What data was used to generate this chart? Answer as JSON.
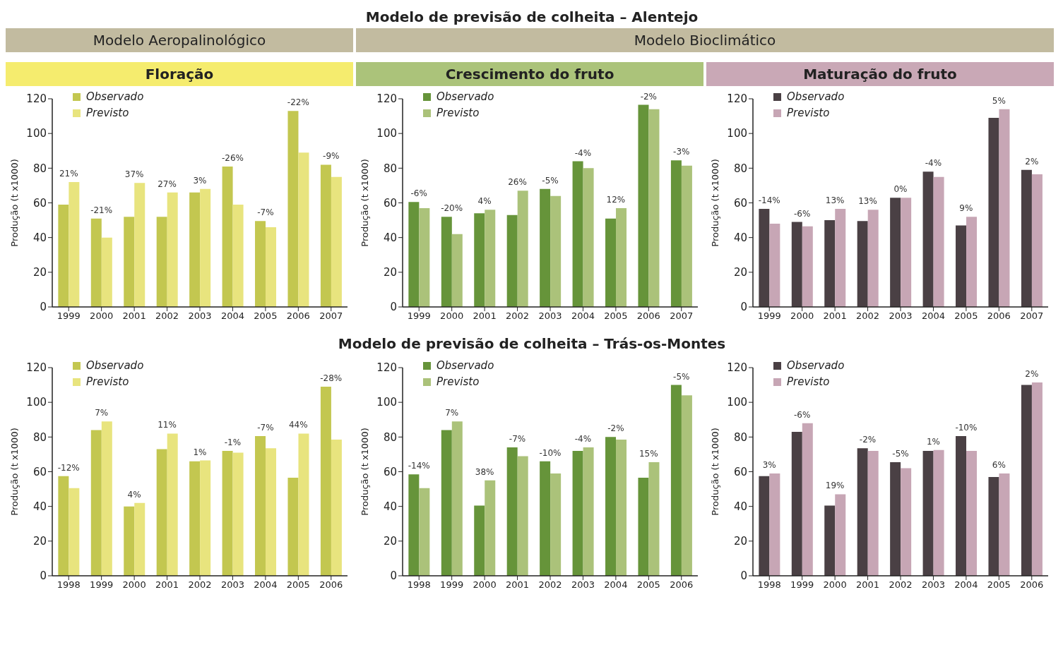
{
  "chart_data": [
    {
      "type": "bar",
      "title": "Floração",
      "ylabel": "Produção (t x1000)",
      "categories": [
        "1999",
        "2000",
        "2001",
        "2002",
        "2003",
        "2004",
        "2005",
        "2006",
        "2007"
      ],
      "ylim": [
        0,
        120
      ],
      "yticks": [
        0,
        20,
        40,
        60,
        80,
        100,
        120
      ],
      "legend": "top left",
      "series": [
        {
          "name": "Observado",
          "color": "#c3c750",
          "values": [
            59,
            51,
            52,
            52,
            66,
            81,
            49.5,
            113,
            82
          ]
        },
        {
          "name": "Previsto",
          "color": "#e8e47e",
          "values": [
            72,
            40,
            71.5,
            66,
            68,
            59,
            46,
            89,
            75
          ]
        }
      ],
      "annotations": [
        "Modelo de previsão de colheita – Alentejo",
        "Modelo Aeropalinológico",
        {
          "text": "21%",
          "x": "1999",
          "y": 72
        },
        {
          "text": "-21%",
          "x": "2000",
          "y": 51
        },
        {
          "text": "37%",
          "x": "2001",
          "y": 71.5
        },
        {
          "text": "27%",
          "x": "2002",
          "y": 66
        },
        {
          "text": "3%",
          "x": "2003",
          "y": 68
        },
        {
          "text": "-26%",
          "x": "2004",
          "y": 81
        },
        {
          "text": "-7%",
          "x": "2005",
          "y": 49.5
        },
        {
          "text": "-22%",
          "x": "2006",
          "y": 113
        },
        {
          "text": "-9%",
          "x": "2007",
          "y": 82
        }
      ]
    },
    {
      "type": "bar",
      "title": "Crescimento do fruto",
      "ylabel": "Produção (t x1000)",
      "categories": [
        "1999",
        "2000",
        "2001",
        "2002",
        "2003",
        "2004",
        "2005",
        "2006",
        "2007"
      ],
      "ylim": [
        0,
        120
      ],
      "yticks": [
        0,
        20,
        40,
        60,
        80,
        100,
        120
      ],
      "legend": "top left",
      "series": [
        {
          "name": "Observado",
          "color": "#66943a",
          "values": [
            60.5,
            52,
            54,
            53,
            68,
            84,
            51,
            116.5,
            84.5
          ]
        },
        {
          "name": "Previsto",
          "color": "#abc27a",
          "values": [
            57,
            42,
            56,
            67,
            64,
            80,
            57,
            114,
            81.5
          ]
        }
      ],
      "annotations": [
        "Modelo Bioclimático",
        {
          "text": "-6%",
          "x": "1999",
          "y": 60.5
        },
        {
          "text": "-20%",
          "x": "2000",
          "y": 52
        },
        {
          "text": "4%",
          "x": "2001",
          "y": 56
        },
        {
          "text": "26%",
          "x": "2002",
          "y": 67
        },
        {
          "text": "-5%",
          "x": "2003",
          "y": 68
        },
        {
          "text": "-4%",
          "x": "2004",
          "y": 84
        },
        {
          "text": "12%",
          "x": "2005",
          "y": 57
        },
        {
          "text": "-2%",
          "x": "2006",
          "y": 116.5
        },
        {
          "text": "-3%",
          "x": "2007",
          "y": 84.5
        }
      ]
    },
    {
      "type": "bar",
      "title": "Maturação do fruto",
      "ylabel": "Produção (t x1000)",
      "categories": [
        "1999",
        "2000",
        "2001",
        "2002",
        "2003",
        "2004",
        "2005",
        "2006",
        "2007"
      ],
      "ylim": [
        0,
        120
      ],
      "yticks": [
        0,
        20,
        40,
        60,
        80,
        100,
        120
      ],
      "legend": "top left",
      "series": [
        {
          "name": "Observado",
          "color": "#4a4044",
          "values": [
            56.5,
            49,
            50,
            49.5,
            63,
            78,
            47,
            109,
            79
          ]
        },
        {
          "name": "Previsto",
          "color": "#c7a6b5",
          "values": [
            48,
            46.5,
            56.5,
            56,
            63,
            75,
            52,
            114,
            76.5
          ]
        }
      ],
      "annotations": [
        {
          "text": "-14%",
          "x": "1999",
          "y": 56.5
        },
        {
          "text": "-6%",
          "x": "2000",
          "y": 49
        },
        {
          "text": "13%",
          "x": "2001",
          "y": 56.5
        },
        {
          "text": "13%",
          "x": "2002",
          "y": 56
        },
        {
          "text": "0%",
          "x": "2003",
          "y": 63
        },
        {
          "text": "-4%",
          "x": "2004",
          "y": 78
        },
        {
          "text": "9%",
          "x": "2005",
          "y": 52
        },
        {
          "text": "5%",
          "x": "2006",
          "y": 114
        },
        {
          "text": "2%",
          "x": "2007",
          "y": 79
        }
      ]
    },
    {
      "type": "bar",
      "ylabel": "Produção (t x1000)",
      "categories": [
        "1998",
        "1999",
        "2000",
        "2001",
        "2002",
        "2003",
        "2004",
        "2005",
        "2006"
      ],
      "ylim": [
        0,
        120
      ],
      "yticks": [
        0,
        20,
        40,
        60,
        80,
        100,
        120
      ],
      "legend": "top left",
      "series": [
        {
          "name": "Observado",
          "color": "#c3c750",
          "values": [
            57.5,
            84,
            40,
            73,
            66,
            72,
            80.5,
            56.5,
            109
          ]
        },
        {
          "name": "Previsto",
          "color": "#e8e47e",
          "values": [
            50.5,
            89,
            42,
            82,
            66.5,
            71,
            73.5,
            82,
            78.5
          ]
        }
      ],
      "annotations": [
        "Modelo de previsão de colheita – Trás-os-Montes",
        {
          "text": "-12%",
          "x": "1998",
          "y": 57.5
        },
        {
          "text": "7%",
          "x": "1999",
          "y": 89
        },
        {
          "text": "4%",
          "x": "2000",
          "y": 42
        },
        {
          "text": "11%",
          "x": "2001",
          "y": 82
        },
        {
          "text": "1%",
          "x": "2002",
          "y": 66.5
        },
        {
          "text": "-1%",
          "x": "2003",
          "y": 72
        },
        {
          "text": "-7%",
          "x": "2004",
          "y": 80.5
        },
        {
          "text": "44%",
          "x": "2005",
          "y": 82
        },
        {
          "text": "-28%",
          "x": "2006",
          "y": 109
        }
      ]
    },
    {
      "type": "bar",
      "ylabel": "Produção (t x1000)",
      "categories": [
        "1998",
        "1999",
        "2000",
        "2001",
        "2002",
        "2003",
        "2004",
        "2005",
        "2006"
      ],
      "ylim": [
        0,
        120
      ],
      "yticks": [
        0,
        20,
        40,
        60,
        80,
        100,
        120
      ],
      "legend": "top left",
      "series": [
        {
          "name": "Observado",
          "color": "#66943a",
          "values": [
            58.5,
            84,
            40.5,
            74,
            66,
            72,
            80,
            56.5,
            110
          ]
        },
        {
          "name": "Previsto",
          "color": "#abc27a",
          "values": [
            50.5,
            89,
            55,
            69,
            59,
            74,
            78.5,
            65.5,
            104
          ]
        }
      ],
      "annotations": [
        {
          "text": "-14%",
          "x": "1998",
          "y": 58.5
        },
        {
          "text": "7%",
          "x": "1999",
          "y": 89
        },
        {
          "text": "38%",
          "x": "2000",
          "y": 55
        },
        {
          "text": "-7%",
          "x": "2001",
          "y": 74
        },
        {
          "text": "-10%",
          "x": "2002",
          "y": 66
        },
        {
          "text": "-4%",
          "x": "2003",
          "y": 74
        },
        {
          "text": "-2%",
          "x": "2004",
          "y": 80
        },
        {
          "text": "15%",
          "x": "2005",
          "y": 65.5
        },
        {
          "text": "-5%",
          "x": "2006",
          "y": 110
        }
      ]
    },
    {
      "type": "bar",
      "ylabel": "Produção (t x1000)",
      "categories": [
        "1998",
        "1999",
        "2000",
        "2001",
        "2002",
        "2003",
        "2004",
        "2005",
        "2006"
      ],
      "ylim": [
        0,
        120
      ],
      "yticks": [
        0,
        20,
        40,
        60,
        80,
        100,
        120
      ],
      "legend": "top left",
      "series": [
        {
          "name": "Observado",
          "color": "#4a4044",
          "values": [
            57.5,
            83,
            40.5,
            73.5,
            65.5,
            72,
            80.5,
            57,
            110
          ]
        },
        {
          "name": "Previsto",
          "color": "#c7a6b5",
          "values": [
            59,
            88,
            47,
            72,
            62,
            72.5,
            72,
            59,
            111.5
          ]
        }
      ],
      "annotations": [
        {
          "text": "3%",
          "x": "1998",
          "y": 59
        },
        {
          "text": "-6%",
          "x": "1999",
          "y": 88
        },
        {
          "text": "19%",
          "x": "2000",
          "y": 47
        },
        {
          "text": "-2%",
          "x": "2001",
          "y": 73.5
        },
        {
          "text": "-5%",
          "x": "2002",
          "y": 65.5
        },
        {
          "text": "1%",
          "x": "2003",
          "y": 72.5
        },
        {
          "text": "-10%",
          "x": "2004",
          "y": 80.5
        },
        {
          "text": "6%",
          "x": "2005",
          "y": 59
        },
        {
          "text": "2%",
          "x": "2006",
          "y": 111.5
        }
      ]
    }
  ]
}
